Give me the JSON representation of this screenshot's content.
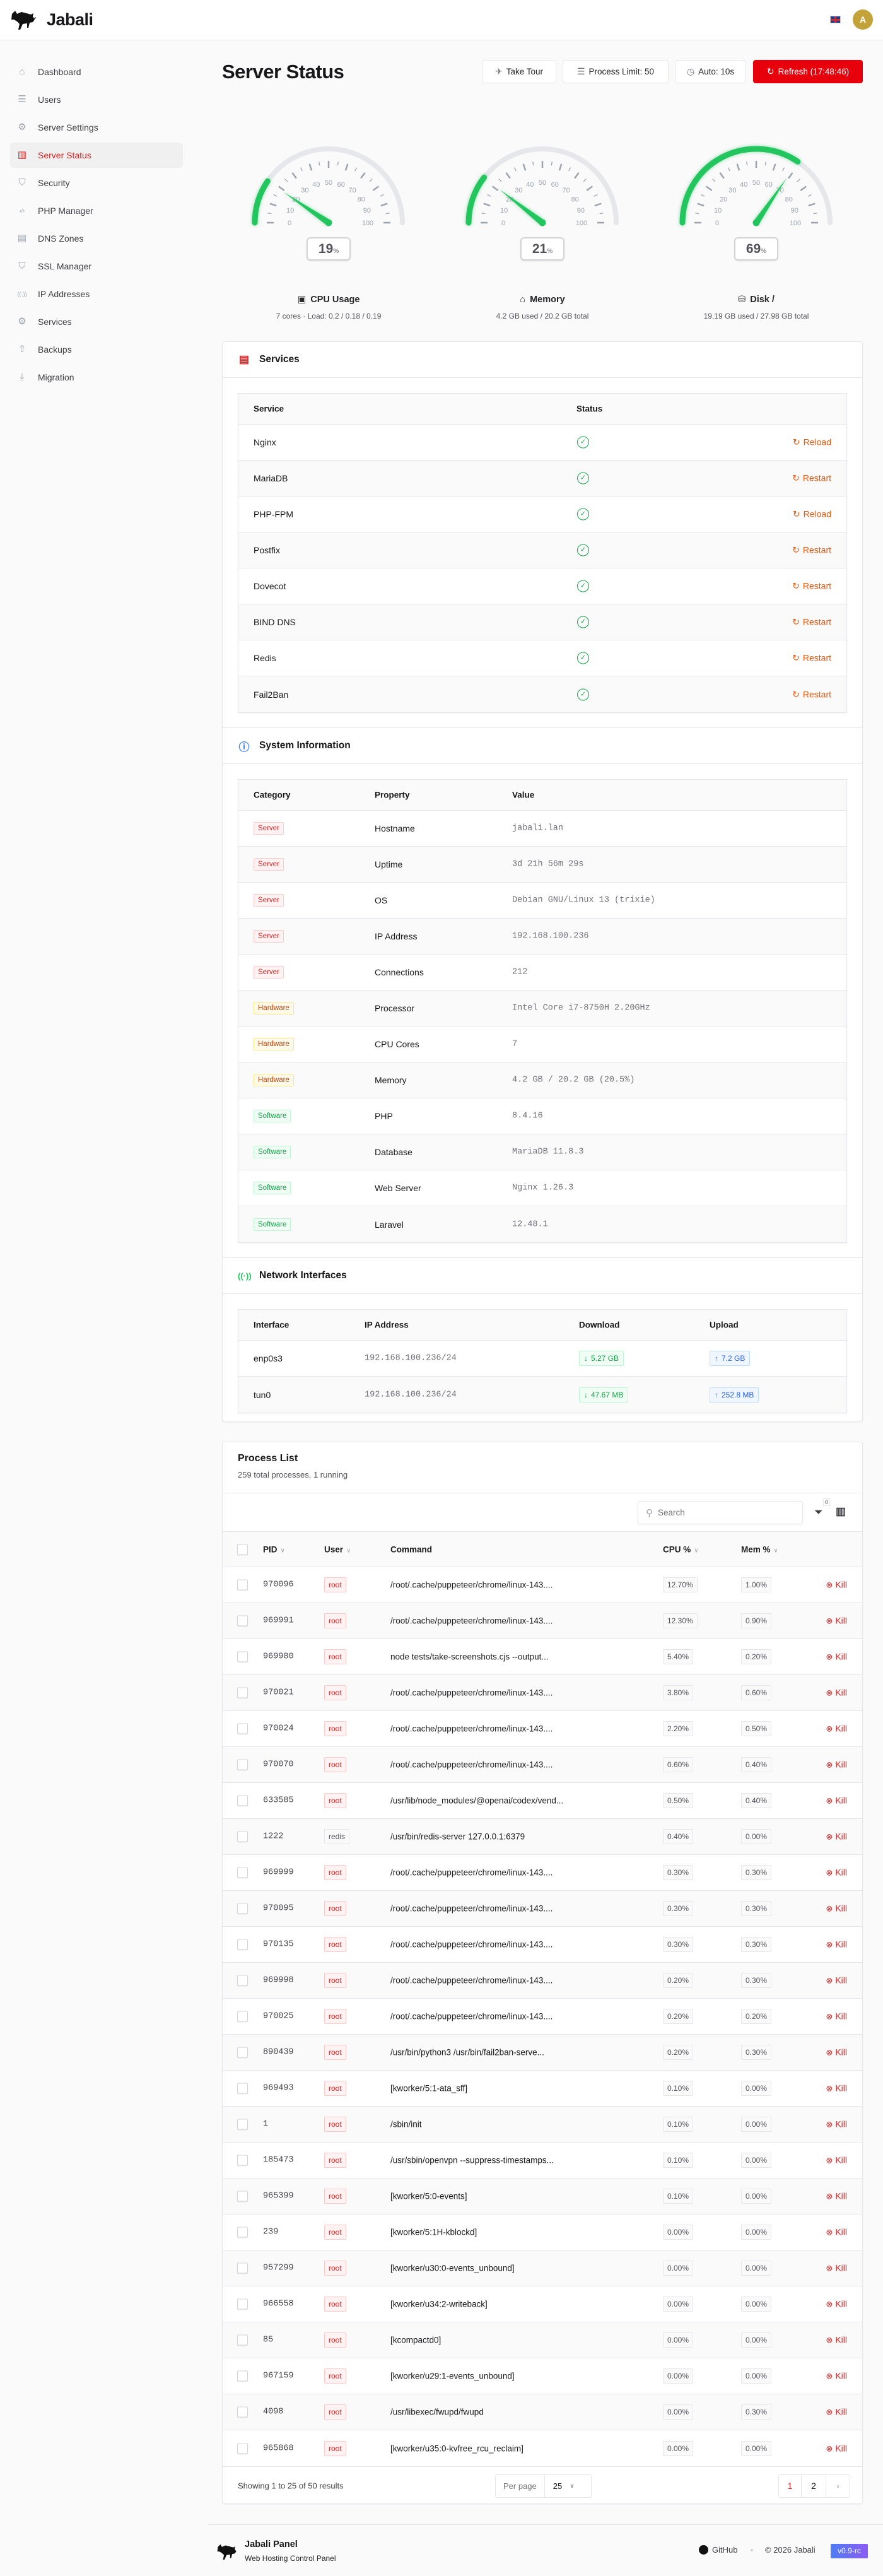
{
  "app": {
    "name": "Jabali",
    "avatar_initial": "A",
    "language_flag": "uk-flag-icon"
  },
  "sidebar": {
    "items": [
      {
        "label": "Dashboard",
        "icon": "home-icon",
        "glyph": "⌂"
      },
      {
        "label": "Users",
        "icon": "users-icon",
        "glyph": "☰"
      },
      {
        "label": "Server Settings",
        "icon": "gear-icon",
        "glyph": "⚙"
      },
      {
        "label": "Server Status",
        "icon": "chart-bar-icon",
        "glyph": "▥",
        "active": true
      },
      {
        "label": "Security",
        "icon": "shield-check-icon",
        "glyph": "⛉"
      },
      {
        "label": "PHP Manager",
        "icon": "code-icon",
        "glyph": "‹/›"
      },
      {
        "label": "DNS Zones",
        "icon": "server-icon",
        "glyph": "▤"
      },
      {
        "label": "SSL Manager",
        "icon": "shield-check-icon",
        "glyph": "⛉"
      },
      {
        "label": "IP Addresses",
        "icon": "signal-icon",
        "glyph": "((·))"
      },
      {
        "label": "Services",
        "icon": "gear-icon",
        "glyph": "⚙"
      },
      {
        "label": "Backups",
        "icon": "cloud-upload-icon",
        "glyph": "⇧"
      },
      {
        "label": "Migration",
        "icon": "download-icon",
        "glyph": "⤓"
      }
    ]
  },
  "header": {
    "title": "Server Status",
    "take_tour": "Take Tour",
    "process_limit": "Process Limit: 50",
    "auto_refresh": "Auto: 10s",
    "refresh": "Refresh (17:48:46)"
  },
  "gauges": {
    "scale_labels": [
      "0",
      "10",
      "20",
      "30",
      "40",
      "50",
      "60",
      "70",
      "80",
      "90",
      "100"
    ],
    "colors": {
      "fill": "#22c55e",
      "track": "#e5e7eb"
    },
    "items": [
      {
        "value": 19,
        "unit": "%",
        "label": "CPU Usage",
        "icon": "cpu-icon",
        "sub": "7 cores · Load: 0.2 / 0.18 / 0.19"
      },
      {
        "value": 21,
        "unit": "%",
        "label": "Memory",
        "icon": "memory-icon",
        "sub": "4.2 GB used / 20.2 GB total"
      },
      {
        "value": 69,
        "unit": "%",
        "label": "Disk /",
        "icon": "database-icon",
        "sub": "19.19 GB used / 27.98 GB total"
      }
    ]
  },
  "services": {
    "title": "Services",
    "columns": [
      "Service",
      "Status"
    ],
    "rows": [
      {
        "name": "Nginx",
        "status": "running",
        "action": "Reload"
      },
      {
        "name": "MariaDB",
        "status": "running",
        "action": "Restart"
      },
      {
        "name": "PHP-FPM",
        "status": "running",
        "action": "Reload"
      },
      {
        "name": "Postfix",
        "status": "running",
        "action": "Restart"
      },
      {
        "name": "Dovecot",
        "status": "running",
        "action": "Restart"
      },
      {
        "name": "BIND DNS",
        "status": "running",
        "action": "Restart"
      },
      {
        "name": "Redis",
        "status": "running",
        "action": "Restart"
      },
      {
        "name": "Fail2Ban",
        "status": "running",
        "action": "Restart"
      }
    ]
  },
  "system_info": {
    "title": "System Information",
    "columns": [
      "Category",
      "Property",
      "Value"
    ],
    "rows": [
      {
        "category": "Server",
        "property": "Hostname",
        "value": "jabali.lan"
      },
      {
        "category": "Server",
        "property": "Uptime",
        "value": "3d 21h 56m 29s"
      },
      {
        "category": "Server",
        "property": "OS",
        "value": "Debian GNU/Linux 13 (trixie)"
      },
      {
        "category": "Server",
        "property": "IP Address",
        "value": "192.168.100.236"
      },
      {
        "category": "Server",
        "property": "Connections",
        "value": "212"
      },
      {
        "category": "Hardware",
        "property": "Processor",
        "value": "Intel Core i7-8750H 2.20GHz"
      },
      {
        "category": "Hardware",
        "property": "CPU Cores",
        "value": "7"
      },
      {
        "category": "Hardware",
        "property": "Memory",
        "value": "4.2 GB / 20.2 GB (20.5%)"
      },
      {
        "category": "Software",
        "property": "PHP",
        "value": "8.4.16"
      },
      {
        "category": "Software",
        "property": "Database",
        "value": "MariaDB 11.8.3"
      },
      {
        "category": "Software",
        "property": "Web Server",
        "value": "Nginx 1.26.3"
      },
      {
        "category": "Software",
        "property": "Laravel",
        "value": "12.48.1"
      }
    ]
  },
  "network": {
    "title": "Network Interfaces",
    "columns": [
      "Interface",
      "IP Address",
      "Download",
      "Upload"
    ],
    "rows": [
      {
        "interface": "enp0s3",
        "ip": "192.168.100.236/24",
        "download": "5.27 GB",
        "upload": "7.2 GB"
      },
      {
        "interface": "tun0",
        "ip": "192.168.100.236/24",
        "download": "47.67 MB",
        "upload": "252.8 MB"
      }
    ]
  },
  "processes": {
    "title": "Process List",
    "subtitle": "259 total processes, 1 running",
    "search_placeholder": "Search",
    "filter_count": "0",
    "columns": {
      "pid": "PID",
      "user": "User",
      "command": "Command",
      "cpu": "CPU %",
      "mem": "Mem %"
    },
    "kill_label": "Kill",
    "rows": [
      {
        "pid": "970096",
        "user": "root",
        "command": "/root/.cache/puppeteer/chrome/linux-143....",
        "cpu": "12.70%",
        "mem": "1.00%"
      },
      {
        "pid": "969991",
        "user": "root",
        "command": "/root/.cache/puppeteer/chrome/linux-143....",
        "cpu": "12.30%",
        "mem": "0.90%"
      },
      {
        "pid": "969980",
        "user": "root",
        "command": "node tests/take-screenshots.cjs --output...",
        "cpu": "5.40%",
        "mem": "0.20%"
      },
      {
        "pid": "970021",
        "user": "root",
        "command": "/root/.cache/puppeteer/chrome/linux-143....",
        "cpu": "3.80%",
        "mem": "0.60%"
      },
      {
        "pid": "970024",
        "user": "root",
        "command": "/root/.cache/puppeteer/chrome/linux-143....",
        "cpu": "2.20%",
        "mem": "0.50%"
      },
      {
        "pid": "970070",
        "user": "root",
        "command": "/root/.cache/puppeteer/chrome/linux-143....",
        "cpu": "0.60%",
        "mem": "0.40%"
      },
      {
        "pid": "633585",
        "user": "root",
        "command": "/usr/lib/node_modules/@openai/codex/vend...",
        "cpu": "0.50%",
        "mem": "0.40%"
      },
      {
        "pid": "1222",
        "user": "redis",
        "command": "/usr/bin/redis-server 127.0.0.1:6379",
        "cpu": "0.40%",
        "mem": "0.00%"
      },
      {
        "pid": "969999",
        "user": "root",
        "command": "/root/.cache/puppeteer/chrome/linux-143....",
        "cpu": "0.30%",
        "mem": "0.30%"
      },
      {
        "pid": "970095",
        "user": "root",
        "command": "/root/.cache/puppeteer/chrome/linux-143....",
        "cpu": "0.30%",
        "mem": "0.30%"
      },
      {
        "pid": "970135",
        "user": "root",
        "command": "/root/.cache/puppeteer/chrome/linux-143....",
        "cpu": "0.30%",
        "mem": "0.30%"
      },
      {
        "pid": "969998",
        "user": "root",
        "command": "/root/.cache/puppeteer/chrome/linux-143....",
        "cpu": "0.20%",
        "mem": "0.30%"
      },
      {
        "pid": "970025",
        "user": "root",
        "command": "/root/.cache/puppeteer/chrome/linux-143....",
        "cpu": "0.20%",
        "mem": "0.20%"
      },
      {
        "pid": "890439",
        "user": "root",
        "command": "/usr/bin/python3 /usr/bin/fail2ban-serve...",
        "cpu": "0.20%",
        "mem": "0.30%"
      },
      {
        "pid": "969493",
        "user": "root",
        "command": "[kworker/5:1-ata_sff]",
        "cpu": "0.10%",
        "mem": "0.00%"
      },
      {
        "pid": "1",
        "user": "root",
        "command": "/sbin/init",
        "cpu": "0.10%",
        "mem": "0.00%"
      },
      {
        "pid": "185473",
        "user": "root",
        "command": "/usr/sbin/openvpn --suppress-timestamps...",
        "cpu": "0.10%",
        "mem": "0.00%"
      },
      {
        "pid": "965399",
        "user": "root",
        "command": "[kworker/5:0-events]",
        "cpu": "0.10%",
        "mem": "0.00%"
      },
      {
        "pid": "239",
        "user": "root",
        "command": "[kworker/5:1H-kblockd]",
        "cpu": "0.00%",
        "mem": "0.00%"
      },
      {
        "pid": "957299",
        "user": "root",
        "command": "[kworker/u30:0-events_unbound]",
        "cpu": "0.00%",
        "mem": "0.00%"
      },
      {
        "pid": "966558",
        "user": "root",
        "command": "[kworker/u34:2-writeback]",
        "cpu": "0.00%",
        "mem": "0.00%"
      },
      {
        "pid": "85",
        "user": "root",
        "command": "[kcompactd0]",
        "cpu": "0.00%",
        "mem": "0.00%"
      },
      {
        "pid": "967159",
        "user": "root",
        "command": "[kworker/u29:1-events_unbound]",
        "cpu": "0.00%",
        "mem": "0.00%"
      },
      {
        "pid": "4098",
        "user": "root",
        "command": "/usr/libexec/fwupd/fwupd",
        "cpu": "0.00%",
        "mem": "0.30%"
      },
      {
        "pid": "965868",
        "user": "root",
        "command": "[kworker/u35:0-kvfree_rcu_reclaim]",
        "cpu": "0.00%",
        "mem": "0.00%"
      }
    ],
    "pagination": {
      "summary": "Showing 1 to 25 of 50 results",
      "per_page_label": "Per page",
      "per_page": "25",
      "pages": [
        "1",
        "2"
      ],
      "current": "1"
    }
  },
  "footer": {
    "name": "Jabali Panel",
    "tagline": "Web Hosting Control Panel",
    "github": "GitHub",
    "copyright": "© 2026 Jabali",
    "version": "v0.9-rc"
  },
  "colors": {
    "accent": "#e7000b",
    "success": "#16a34a",
    "warning": "#ea580c",
    "info": "#2563eb"
  }
}
